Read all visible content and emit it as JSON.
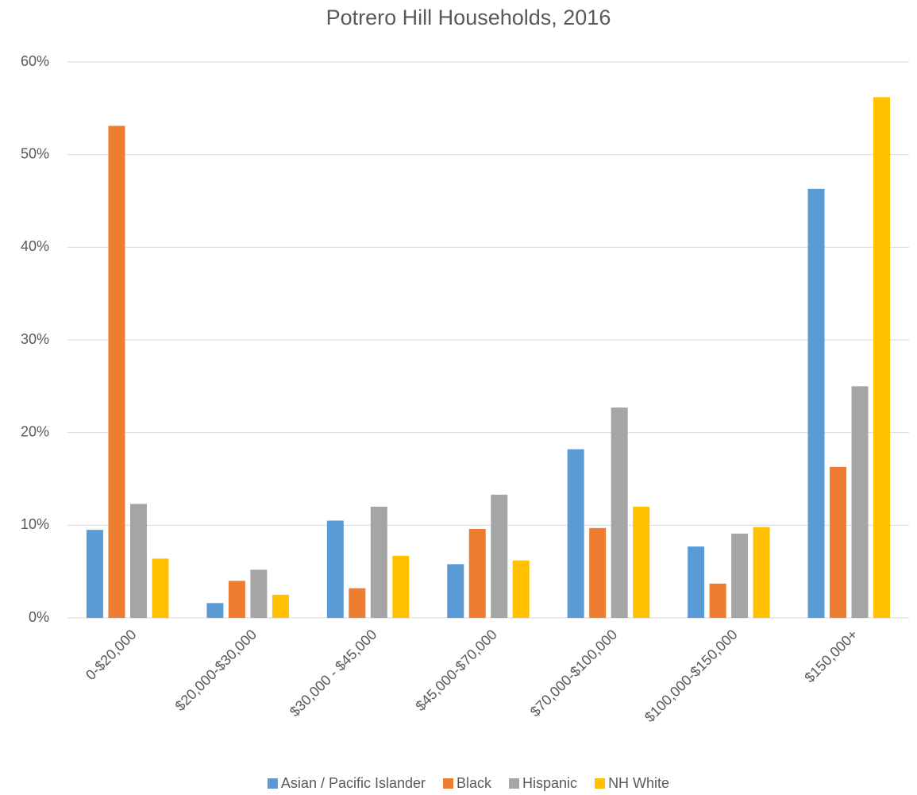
{
  "chart_data": {
    "type": "bar",
    "title": "Potrero Hill Households, 2016",
    "categories": [
      "0-$20,000",
      "$20,000-$30,000",
      "$30,000 - $45,000",
      "$45,000-$70,000",
      "$70,000-$100,000",
      "$100,000-$150,000",
      "$150,000+"
    ],
    "series": [
      {
        "name": "Asian / Pacific Islander",
        "color": "#5b9bd5",
        "values": [
          9.5,
          1.6,
          10.5,
          5.8,
          18.2,
          7.7,
          46.3
        ]
      },
      {
        "name": "Black",
        "color": "#ed7d31",
        "values": [
          53.1,
          4.0,
          3.2,
          9.6,
          9.7,
          3.7,
          16.3
        ]
      },
      {
        "name": "Hispanic",
        "color": "#a5a5a5",
        "values": [
          12.3,
          5.2,
          12.0,
          13.3,
          22.7,
          9.1,
          25.0
        ]
      },
      {
        "name": "NH White",
        "color": "#ffc000",
        "values": [
          6.4,
          2.5,
          6.7,
          6.2,
          12.0,
          9.8,
          56.2
        ]
      }
    ],
    "ylim": [
      0,
      60
    ],
    "yticks": [
      {
        "value": 0,
        "label": "0%"
      },
      {
        "value": 10,
        "label": "10%"
      },
      {
        "value": 20,
        "label": "20%"
      },
      {
        "value": 30,
        "label": "30%"
      },
      {
        "value": 40,
        "label": "40%"
      },
      {
        "value": 50,
        "label": "50%"
      },
      {
        "value": 60,
        "label": "60%"
      }
    ],
    "grid": true,
    "legend": "bottom"
  }
}
